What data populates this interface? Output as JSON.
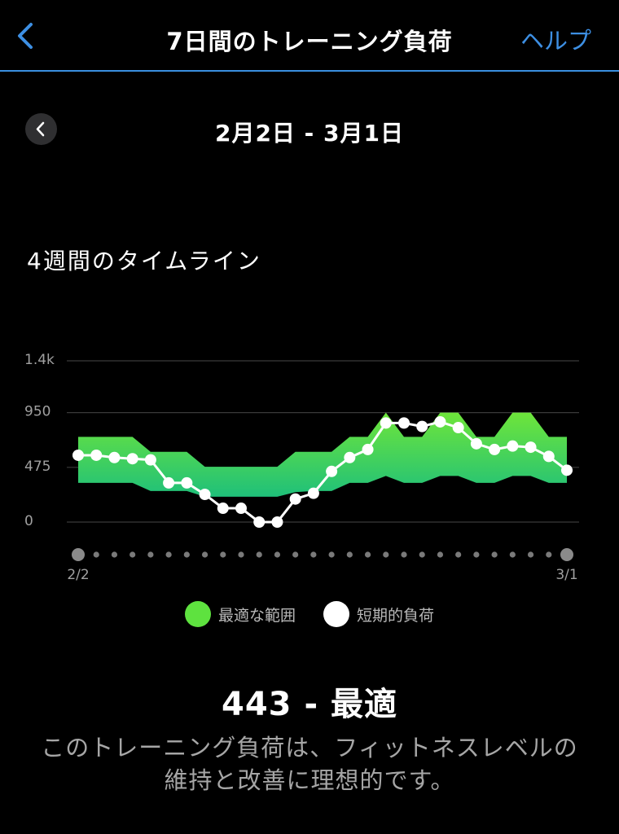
{
  "header": {
    "title": "7日間のトレーニング負荷",
    "help_label": "ヘルプ"
  },
  "date_range": "2月2日 - 3月1日",
  "section_title": "4週間のタイムライン",
  "colors": {
    "accent": "#3d8fe3",
    "range_green_top": "#6ee53a",
    "range_green_bottom": "#1fc07a",
    "line": "#ffffff",
    "grid": "#3a3a3a"
  },
  "chart_data": {
    "type": "line",
    "y_ticks": [
      "1.4k",
      "950",
      "475",
      "0"
    ],
    "y_tick_values": [
      1400,
      950,
      475,
      0
    ],
    "ylim": [
      0,
      1400
    ],
    "x_tick_labels": [
      "2/2",
      "3/1"
    ],
    "x": [
      "2/2",
      "2/3",
      "2/4",
      "2/5",
      "2/6",
      "2/7",
      "2/8",
      "2/9",
      "2/10",
      "2/11",
      "2/12",
      "2/13",
      "2/14",
      "2/15",
      "2/16",
      "2/17",
      "2/18",
      "2/19",
      "2/20",
      "2/21",
      "2/22",
      "2/23",
      "2/24",
      "2/25",
      "2/26",
      "2/27",
      "2/28",
      "3/1"
    ],
    "series": [
      {
        "name": "最適な範囲",
        "kind": "band",
        "color": "#5ee23f",
        "upper": [
          740,
          740,
          740,
          740,
          610,
          610,
          610,
          480,
          480,
          480,
          480,
          480,
          610,
          610,
          610,
          740,
          740,
          950,
          740,
          740,
          950,
          950,
          740,
          740,
          950,
          950,
          740,
          740
        ],
        "lower": [
          340,
          340,
          340,
          340,
          270,
          270,
          270,
          220,
          220,
          220,
          220,
          220,
          260,
          270,
          270,
          340,
          340,
          400,
          340,
          340,
          400,
          400,
          340,
          340,
          400,
          400,
          340,
          340
        ]
      },
      {
        "name": "短期的負荷",
        "kind": "line",
        "color": "#ffffff",
        "values": [
          580,
          580,
          560,
          550,
          540,
          340,
          340,
          240,
          120,
          120,
          0,
          0,
          200,
          250,
          440,
          560,
          630,
          860,
          860,
          830,
          870,
          820,
          680,
          630,
          660,
          650,
          570,
          450
        ]
      }
    ],
    "grid": true,
    "legend_position": "bottom"
  },
  "legend": {
    "range_label": "最適な範囲",
    "load_label": "短期的負荷"
  },
  "status": {
    "value": "443 - 最適"
  },
  "description": {
    "line1": "このトレーニング負荷は、フィットネスレベルの",
    "line2": "維持と改善に理想的です。"
  }
}
